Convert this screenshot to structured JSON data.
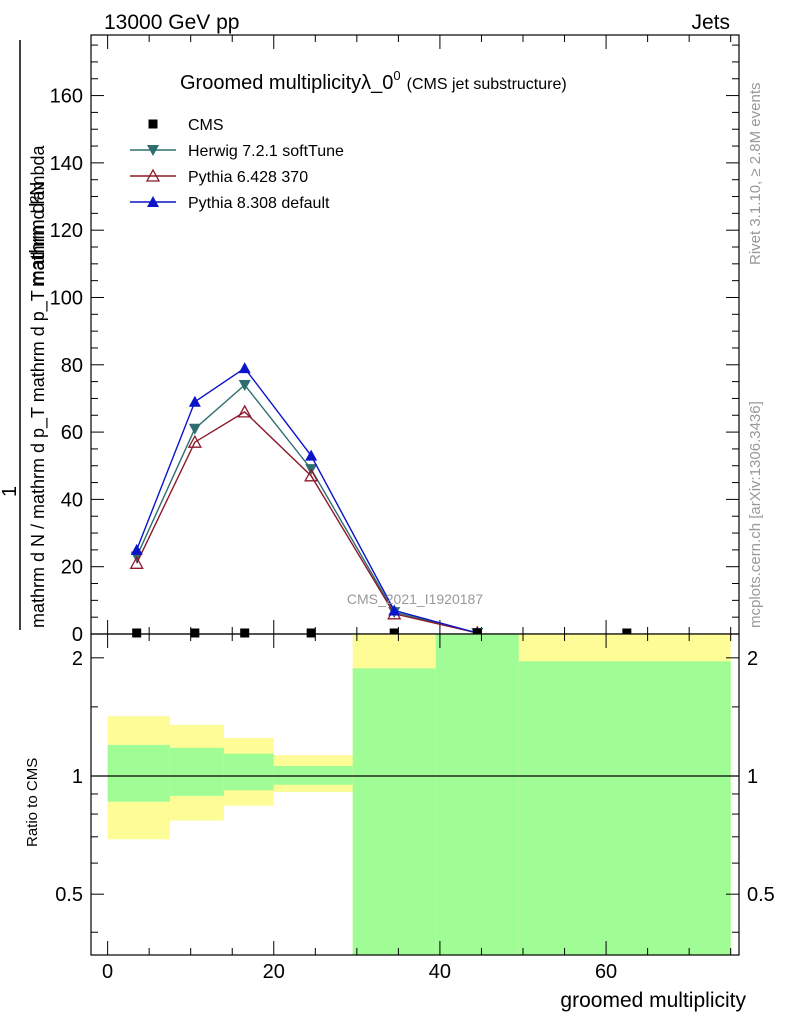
{
  "header": {
    "energy_label": "13000 GeV pp",
    "process_label": "Jets"
  },
  "side_labels": {
    "rivet": "Rivet 3.1.10, ≥ 2.8M events",
    "mcplots": "mcplots.cern.ch [arXiv:1306.3436]"
  },
  "watermark": "CMS_2021_I1920187",
  "chart_data": [
    {
      "type": "line",
      "title_main": "Groomed multiplicityλ_0",
      "title_sup": "0",
      "title_sub": "(CMS jet substructure)",
      "ylabel_numerator": "mathrm d²N",
      "ylabel_one": "1",
      "ylabel_denominator": "mathrm d N / mathrm d p_T mathrm d p_T mathrm d lambda",
      "xlim": [
        -2,
        76
      ],
      "ylim": [
        0,
        178
      ],
      "y_ticks": [
        20,
        40,
        60,
        80,
        100,
        120,
        140,
        160
      ],
      "y_tick_labels": [
        "20",
        "40",
        "60",
        "80",
        "100",
        "120",
        "140",
        "160"
      ],
      "y_zero_label": "0",
      "legend": [
        {
          "name": "CMS",
          "color": "#000000",
          "marker": "square"
        },
        {
          "name": "Herwig 7.2.1 softTune",
          "color": "#2e6e70",
          "marker": "triangle-down"
        },
        {
          "name": "Pythia 6.428 370",
          "color": "#8b1a2a",
          "marker": "triangle-open"
        },
        {
          "name": "Pythia 8.308 default",
          "color": "#0a14c8",
          "marker": "triangle-up"
        }
      ],
      "cms_points": {
        "x": [
          3.5,
          10.5,
          16.5,
          24.5,
          34.5,
          44.5,
          62.5
        ],
        "y": [
          0.3,
          0.3,
          0.3,
          0.3,
          0.3,
          0.3,
          0.3
        ]
      },
      "series": [
        {
          "name": "Herwig 7.2.1 softTune",
          "x": [
            3.5,
            10.5,
            16.5,
            24.5,
            34.5,
            44.5
          ],
          "y": [
            23,
            61,
            74,
            49,
            6.5,
            0.3
          ]
        },
        {
          "name": "Pythia 6.428 370",
          "x": [
            3.5,
            10.5,
            16.5,
            24.5,
            34.5,
            44.5
          ],
          "y": [
            21,
            57,
            66,
            47,
            6,
            0.3
          ]
        },
        {
          "name": "Pythia 8.308 default",
          "x": [
            3.5,
            10.5,
            16.5,
            24.5,
            34.5,
            44.5
          ],
          "y": [
            25,
            69,
            79,
            53,
            7,
            0.3
          ]
        }
      ]
    },
    {
      "type": "area",
      "ylabel": "Ratio to CMS",
      "xlabel": "groomed multiplicity",
      "xlim": [
        -2,
        76
      ],
      "ylim": [
        0.35,
        2.3
      ],
      "x_ticks": [
        0,
        20,
        40,
        60
      ],
      "x_tick_labels": [
        "0",
        "20",
        "40",
        "60"
      ],
      "y_ticks": [
        0.5,
        1,
        2
      ],
      "y_tick_labels": [
        "0.5",
        "1",
        "2"
      ],
      "reference_line": 1,
      "bands": [
        {
          "x_low": 0,
          "x_high": 7.5,
          "green_low": 0.86,
          "green_high": 1.2,
          "yellow_low": 0.69,
          "yellow_high": 1.42
        },
        {
          "x_low": 7.5,
          "x_high": 14,
          "green_low": 0.89,
          "green_high": 1.18,
          "yellow_low": 0.77,
          "yellow_high": 1.35
        },
        {
          "x_low": 14,
          "x_high": 20,
          "green_low": 0.92,
          "green_high": 1.14,
          "yellow_low": 0.84,
          "yellow_high": 1.25
        },
        {
          "x_low": 20,
          "x_high": 29.5,
          "green_low": 0.95,
          "green_high": 1.06,
          "yellow_low": 0.91,
          "yellow_high": 1.13
        },
        {
          "x_low": 29.5,
          "x_high": 39.5,
          "green_low": 0.35,
          "green_high": 1.88,
          "yellow_low": 0.35,
          "yellow_high": 2.3
        },
        {
          "x_low": 39.5,
          "x_high": 49.5,
          "green_low": 0.35,
          "green_high": 2.3,
          "yellow_low": 0.35,
          "yellow_high": 2.3
        },
        {
          "x_low": 49.5,
          "x_high": 75,
          "green_low": 0.35,
          "green_high": 1.96,
          "yellow_low": 0.35,
          "yellow_high": 2.3
        }
      ],
      "colors": {
        "green": "#a0fd96",
        "yellow": "#fdfc96"
      }
    }
  ]
}
